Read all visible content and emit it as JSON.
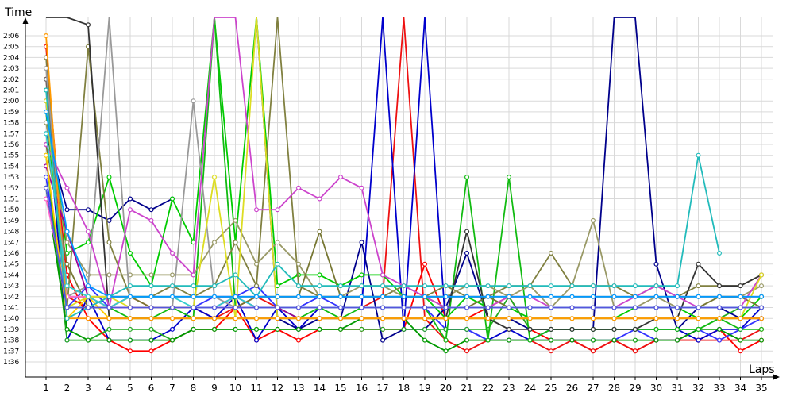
{
  "chart_data": {
    "type": "line",
    "ylabel": "Time",
    "xlabel": "Laps",
    "x": [
      1,
      2,
      3,
      4,
      5,
      6,
      7,
      8,
      9,
      10,
      11,
      12,
      13,
      14,
      15,
      16,
      17,
      18,
      19,
      20,
      21,
      22,
      23,
      24,
      25,
      26,
      27,
      28,
      29,
      30,
      31,
      32,
      33,
      34,
      35
    ],
    "ylim_seconds": [
      94,
      130
    ],
    "y_tick_labels": [
      "1:36",
      "1:37",
      "1:38",
      "1:39",
      "1:40",
      "1:41",
      "1:42",
      "1:43",
      "1:44",
      "1:45",
      "1:46",
      "1:47",
      "1:48",
      "1:49",
      "1:50",
      "1:51",
      "1:52",
      "1:53",
      "1:54",
      "1:55",
      "1:56",
      "1:57",
      "1:58",
      "1:59",
      "2:00",
      "2:01",
      "2:02",
      "2:03",
      "2:04",
      "2:05",
      "2:06"
    ],
    "grid": true,
    "legend": "none",
    "series": [
      {
        "color": "#ff0000",
        "values": [
          122,
          104,
          100,
          98,
          97,
          97,
          98,
          99,
          99,
          101,
          98,
          99,
          98,
          99,
          99,
          99,
          99,
          99,
          105,
          100,
          100,
          101,
          102,
          99,
          98,
          98,
          97,
          98,
          97,
          98,
          98,
          98,
          99,
          97,
          98
        ]
      },
      {
        "color": "#ee1111",
        "values": [
          125,
          102,
          101,
          101,
          102,
          101,
          101,
          101,
          100,
          101,
          102,
          101,
          101,
          101,
          101,
          101,
          102,
          130,
          100,
          98,
          97,
          98,
          98,
          98,
          97,
          98,
          97,
          98,
          97,
          98,
          98,
          98,
          98,
          98,
          99
        ]
      },
      {
        "color": "#0000cc",
        "values": [
          120,
          98,
          102,
          98,
          98,
          98,
          99,
          101,
          100,
          102,
          98,
          101,
          99,
          101,
          101,
          101,
          130,
          99,
          130,
          99,
          99,
          98,
          99,
          98,
          99,
          99,
          99,
          99,
          99,
          99,
          99,
          98,
          99,
          99,
          101
        ]
      },
      {
        "color": "#00008b",
        "values": [
          117,
          110,
          110,
          109,
          111,
          110,
          111,
          null,
          null,
          null,
          130,
          100,
          99,
          100,
          100,
          107,
          98,
          99,
          99,
          101,
          106,
          100,
          100,
          99,
          99,
          99,
          99,
          130,
          130,
          105,
          99,
          101,
          101,
          100,
          100
        ]
      },
      {
        "color": "#3333ff",
        "values": [
          113,
          101,
          103,
          101,
          101,
          101,
          101,
          101,
          102,
          102,
          103,
          101,
          101,
          102,
          101,
          101,
          101,
          101,
          101,
          99,
          99,
          98,
          98,
          98,
          98,
          98,
          98,
          98,
          99,
          98,
          98,
          99,
          98,
          99,
          100
        ]
      },
      {
        "color": "#00cc00",
        "values": [
          121,
          106,
          107,
          113,
          106,
          103,
          111,
          107,
          130,
          107,
          130,
          103,
          104,
          104,
          103,
          104,
          104,
          102,
          102,
          100,
          102,
          101,
          101,
          100,
          100,
          100,
          100,
          100,
          101,
          101,
          101,
          100,
          100,
          100,
          102
        ]
      },
      {
        "color": "#22aa22",
        "values": [
          115,
          98,
          98,
          99,
          99,
          99,
          98,
          99,
          99,
          99,
          99,
          99,
          99,
          99,
          99,
          99,
          99,
          99,
          99,
          99,
          99,
          99,
          102,
          99,
          99,
          99,
          99,
          99,
          99,
          99,
          99,
          99,
          100,
          101,
          101
        ]
      },
      {
        "color": "#009900",
        "values": [
          112,
          99,
          98,
          98,
          98,
          98,
          98,
          99,
          99,
          99,
          99,
          99,
          99,
          99,
          99,
          100,
          100,
          100,
          98,
          97,
          98,
          98,
          98,
          98,
          98,
          98,
          98,
          98,
          98,
          98,
          98,
          99,
          99,
          98,
          98
        ]
      },
      {
        "color": "#11bb11",
        "values": [
          119,
          101,
          101,
          101,
          100,
          100,
          101,
          100,
          130,
          101,
          101,
          101,
          100,
          101,
          100,
          101,
          101,
          101,
          101,
          98,
          113,
          98,
          113,
          98,
          99,
          99,
          99,
          99,
          99,
          99,
          99,
          99,
          100,
          99,
          99
        ]
      },
      {
        "color": "#808040",
        "values": [
          124,
          101,
          125,
          107,
          102,
          102,
          103,
          102,
          103,
          107,
          103,
          130,
          103,
          102,
          102,
          102,
          102,
          103,
          102,
          103,
          102,
          102,
          103,
          103,
          106,
          103,
          103,
          103,
          102,
          103,
          102,
          103,
          103,
          103,
          104
        ]
      },
      {
        "color": "#999966",
        "values": [
          118,
          107,
          104,
          104,
          104,
          104,
          104,
          104,
          107,
          109,
          105,
          107,
          105,
          102,
          102,
          103,
          103,
          102,
          102,
          102,
          103,
          103,
          102,
          103,
          101,
          103,
          109,
          101,
          101,
          102,
          101,
          101,
          102,
          102,
          103
        ]
      },
      {
        "color": "#777733",
        "values": [
          116,
          105,
          101,
          102,
          102,
          101,
          101,
          101,
          101,
          101,
          102,
          102,
          102,
          108,
          102,
          102,
          102,
          102,
          102,
          101,
          101,
          102,
          101,
          101,
          101,
          101,
          101,
          101,
          101,
          101,
          101,
          101,
          102,
          102,
          101
        ]
      },
      {
        "color": "#333333",
        "values": [
          130,
          130,
          127,
          100,
          100,
          100,
          100,
          100,
          100,
          100,
          100,
          100,
          100,
          100,
          100,
          100,
          100,
          100,
          100,
          100,
          108,
          100,
          99,
          99,
          99,
          99,
          99,
          99,
          99,
          100,
          100,
          105,
          103,
          103,
          104
        ]
      },
      {
        "color": "#666666",
        "values": [
          122,
          102,
          102,
          102,
          102,
          102,
          102,
          102,
          102,
          102,
          102,
          102,
          102,
          102,
          102,
          102,
          102,
          102,
          102,
          102,
          102,
          102,
          102,
          102,
          102,
          102,
          102,
          102,
          102,
          102,
          102,
          102,
          102,
          102,
          102
        ]
      },
      {
        "color": "#999999",
        "values": [
          123,
          102,
          103,
          130,
          101,
          101,
          101,
          120,
          102,
          101,
          101,
          101,
          101,
          101,
          101,
          101,
          101,
          101,
          101,
          101,
          101,
          101,
          101,
          101,
          101,
          101,
          101,
          101,
          101,
          101,
          101,
          101,
          101,
          101,
          101
        ]
      },
      {
        "color": "#cc44cc",
        "values": [
          116,
          112,
          108,
          101,
          110,
          109,
          106,
          104,
          130,
          130,
          110,
          110,
          112,
          111,
          113,
          112,
          104,
          103,
          102,
          101,
          101,
          101,
          102,
          102,
          101,
          101,
          101,
          101,
          102,
          103,
          102,
          101,
          101,
          101,
          104
        ]
      },
      {
        "color": "#990099",
        "values": [
          114,
          108,
          102,
          101,
          101,
          101,
          101,
          101,
          101,
          102,
          101,
          101,
          100,
          100,
          100,
          100,
          100,
          100,
          100,
          100,
          100,
          100,
          100,
          100,
          100,
          100,
          100,
          100,
          100,
          100,
          100,
          100,
          100,
          100,
          100
        ]
      },
      {
        "color": "#ff66cc",
        "values": [
          111,
          102,
          102,
          101,
          101,
          101,
          101,
          101,
          101,
          101,
          101,
          101,
          101,
          101,
          101,
          101,
          101,
          101,
          101,
          101,
          101,
          101,
          101,
          101,
          101,
          101,
          101,
          101,
          101,
          101,
          101,
          101,
          101,
          101,
          101
        ]
      },
      {
        "color": "#ffcc00",
        "values": [
          115,
          100,
          102,
          100,
          100,
          100,
          100,
          100,
          100,
          100,
          100,
          100,
          100,
          100,
          100,
          100,
          100,
          100,
          100,
          100,
          100,
          100,
          100,
          100,
          100,
          100,
          100,
          100,
          100,
          100,
          100,
          100,
          100,
          100,
          100
        ]
      },
      {
        "color": "#dddd22",
        "values": [
          120,
          101,
          102,
          102,
          101,
          101,
          101,
          101,
          113,
          100,
          130,
          100,
          100,
          100,
          100,
          100,
          100,
          100,
          100,
          100,
          100,
          100,
          100,
          100,
          100,
          100,
          100,
          100,
          100,
          100,
          100,
          100,
          100,
          100,
          104
        ]
      },
      {
        "color": "#ff9900",
        "values": [
          126,
          100,
          100,
          100,
          100,
          100,
          100,
          100,
          100,
          100,
          100,
          100,
          100,
          100,
          100,
          100,
          100,
          100,
          100,
          100,
          100,
          100,
          100,
          100,
          100,
          100,
          100,
          100,
          100,
          100,
          100,
          100,
          100,
          100,
          100
        ]
      },
      {
        "color": "#33cccc",
        "values": [
          117,
          103,
          102,
          101,
          102,
          102,
          102,
          101,
          101,
          102,
          101,
          101,
          101,
          101,
          101,
          101,
          101,
          101,
          101,
          101,
          101,
          101,
          101,
          101,
          101,
          101,
          101,
          101,
          101,
          101,
          101,
          101,
          101,
          101,
          101
        ]
      },
      {
        "color": "#22bbbb",
        "values": [
          121,
          100,
          101,
          102,
          103,
          103,
          103,
          103,
          103,
          104,
          102,
          105,
          103,
          103,
          103,
          103,
          103,
          103,
          103,
          103,
          103,
          103,
          103,
          103,
          103,
          103,
          103,
          103,
          103,
          103,
          103,
          115,
          106,
          null,
          null
        ]
      },
      {
        "color": "#0099ff",
        "values": [
          119,
          108,
          103,
          102,
          102,
          102,
          102,
          102,
          102,
          102,
          102,
          102,
          102,
          102,
          102,
          102,
          102,
          102,
          102,
          102,
          102,
          102,
          102,
          102,
          102,
          102,
          102,
          102,
          102,
          102,
          102,
          102,
          102,
          102,
          102
        ]
      },
      {
        "color": "#5555dd",
        "values": [
          112,
          101,
          101,
          101,
          101,
          101,
          101,
          101,
          101,
          101,
          101,
          101,
          101,
          101,
          101,
          101,
          101,
          101,
          101,
          101,
          101,
          101,
          101,
          101,
          101,
          101,
          101,
          101,
          101,
          101,
          101,
          101,
          101,
          101,
          101
        ]
      }
    ]
  }
}
